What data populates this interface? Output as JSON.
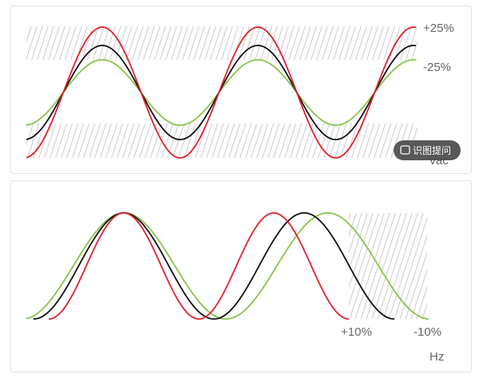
{
  "voltage_panel": {
    "upper_label": "+25%",
    "lower_label": "-25%",
    "axis_label": "Vac"
  },
  "frequency_panel": {
    "upper_label": "+10%",
    "lower_label": "-10%",
    "axis_label": "Hz"
  },
  "overlay_button": {
    "label": "识图提问"
  }
}
